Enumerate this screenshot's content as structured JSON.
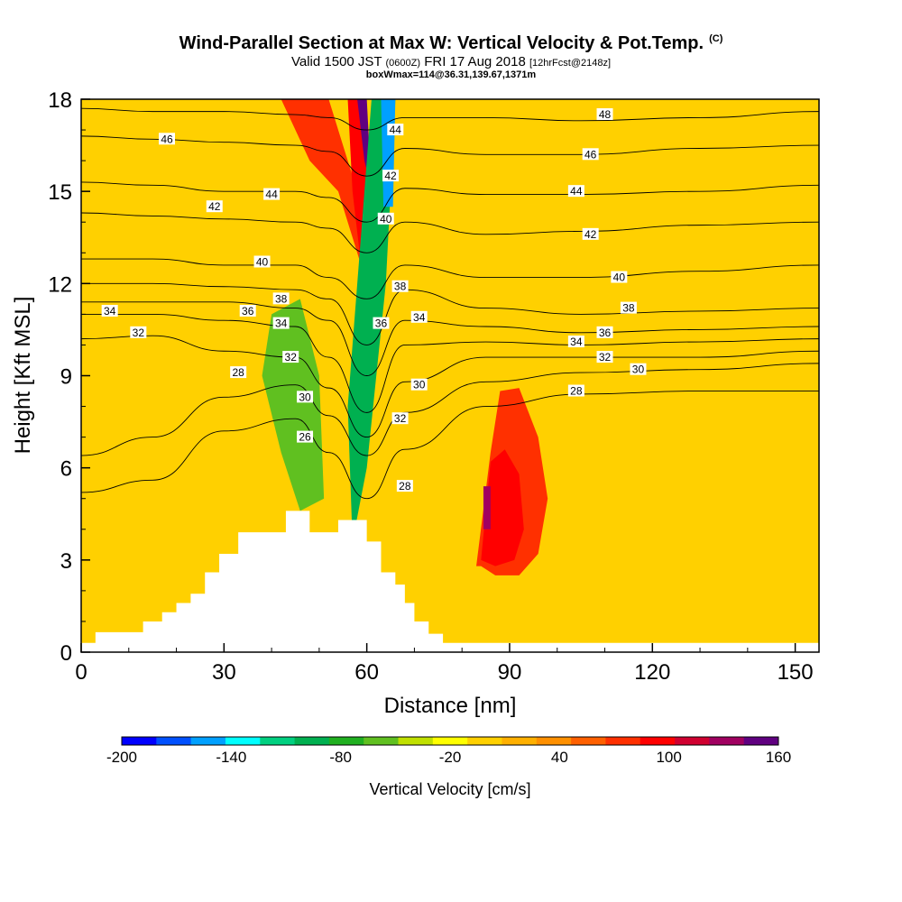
{
  "title": {
    "main": "Wind-Parallel Section at Max W: Vertical Velocity & Pot.Temp.",
    "copyright": "(C)",
    "valid_prefix": "Valid 1500 JST",
    "valid_utc": "(0600Z)",
    "valid_date": "FRI 17 Aug 2018",
    "forecast": "[12hrFcst@2148z]",
    "box": "boxWmax=114@36.31,139.67,1371m"
  },
  "colors": {
    "background_fill": "#ffd000",
    "terrain": "#ffffff",
    "contour_line": "#000000"
  },
  "chart_data": {
    "type": "heatmap",
    "xlabel": "Distance [nm]",
    "ylabel": "Height [Kft MSL]",
    "xlim": [
      0,
      155
    ],
    "ylim": [
      0,
      18
    ],
    "xticks": [
      "0",
      "30",
      "60",
      "90",
      "120",
      "150"
    ],
    "xtick_values": [
      0,
      30,
      60,
      90,
      120,
      150
    ],
    "yticks": [
      "0",
      "3",
      "6",
      "9",
      "12",
      "15",
      "18"
    ],
    "ytick_values": [
      0,
      3,
      6,
      9,
      12,
      15,
      18
    ],
    "colorbar": {
      "label": "Vertical Velocity [cm/s]",
      "min": -200,
      "max": 160,
      "step": 20,
      "tick_labels": [
        "-200",
        "-140",
        "-80",
        "-20",
        "40",
        "100",
        "160"
      ],
      "tick_values": [
        -200,
        -140,
        -80,
        -20,
        40,
        100,
        160
      ],
      "colors": [
        "#0000ff",
        "#0050ff",
        "#00a0ff",
        "#00ffff",
        "#00d080",
        "#00b050",
        "#20b020",
        "#60c020",
        "#c0e000",
        "#ffff00",
        "#ffd000",
        "#ffb000",
        "#ff9000",
        "#ff6000",
        "#ff3000",
        "#ff0000",
        "#d00030",
        "#a00060",
        "#600080"
      ]
    },
    "terrain_profile": [
      [
        0,
        0.3
      ],
      [
        3,
        0.3
      ],
      [
        3,
        0.65
      ],
      [
        13,
        0.65
      ],
      [
        13,
        1.0
      ],
      [
        17,
        1.0
      ],
      [
        17,
        1.3
      ],
      [
        20,
        1.3
      ],
      [
        20,
        1.6
      ],
      [
        23,
        1.6
      ],
      [
        23,
        1.9
      ],
      [
        26,
        1.9
      ],
      [
        26,
        2.6
      ],
      [
        29,
        2.6
      ],
      [
        29,
        3.2
      ],
      [
        33,
        3.2
      ],
      [
        33,
        3.9
      ],
      [
        43,
        3.9
      ],
      [
        43,
        4.6
      ],
      [
        48,
        4.6
      ],
      [
        48,
        3.9
      ],
      [
        54,
        3.9
      ],
      [
        54,
        4.3
      ],
      [
        60,
        4.3
      ],
      [
        60,
        3.6
      ],
      [
        63,
        3.6
      ],
      [
        63,
        2.6
      ],
      [
        66,
        2.6
      ],
      [
        66,
        2.2
      ],
      [
        68,
        2.2
      ],
      [
        68,
        1.6
      ],
      [
        70,
        1.6
      ],
      [
        70,
        1.0
      ],
      [
        73,
        1.0
      ],
      [
        73,
        0.6
      ],
      [
        76,
        0.6
      ],
      [
        76,
        0.3
      ],
      [
        155,
        0.3
      ]
    ],
    "vertical_velocity_regions": [
      {
        "w": 80,
        "x": [
          83,
          86,
          88,
          92,
          96,
          98,
          96,
          92,
          87,
          84
        ],
        "y": [
          2.8,
          6.5,
          8.5,
          8.6,
          7.0,
          5.0,
          3.2,
          2.5,
          2.5,
          2.8
        ]
      },
      {
        "w": 100,
        "x": [
          84,
          86,
          89,
          92,
          93,
          91,
          87
        ],
        "y": [
          3.0,
          6.2,
          6.6,
          5.8,
          4.0,
          3.0,
          2.8
        ]
      },
      {
        "w": 140,
        "x": [
          84.5,
          86,
          86,
          84.5
        ],
        "y": [
          4.0,
          4.0,
          5.4,
          5.4
        ]
      },
      {
        "w": 80,
        "x": [
          42,
          46,
          52,
          56,
          60,
          60,
          57,
          54,
          48
        ],
        "y": [
          18,
          18,
          18,
          16,
          14,
          12,
          13.5,
          15,
          16
        ]
      },
      {
        "w": 100,
        "x": [
          56,
          59,
          62,
          62,
          61,
          60,
          57
        ],
        "y": [
          18,
          18,
          14,
          12,
          10,
          11,
          15
        ]
      },
      {
        "w": 160,
        "x": [
          58,
          60,
          61,
          59.5
        ],
        "y": [
          18,
          18,
          15,
          16
        ]
      },
      {
        "w": -60,
        "x": [
          40,
          46,
          50,
          51,
          46,
          42,
          38
        ],
        "y": [
          11,
          11.5,
          9,
          5,
          4.6,
          6.5,
          9
        ]
      },
      {
        "w": -100,
        "x": [
          56,
          61,
          66,
          64,
          60,
          57
        ],
        "y": [
          8,
          18,
          18,
          12,
          6,
          3.6
        ]
      },
      {
        "w": -160,
        "x": [
          63,
          66,
          65.5,
          63.5
        ],
        "y": [
          18,
          18,
          14.5,
          14.5
        ]
      }
    ],
    "potential_temperature_contours": [
      {
        "label": "28",
        "y": [
          5.2,
          5.6,
          7.2,
          7.6,
          6.5,
          5.0,
          6.6,
          8.0,
          8.4,
          8.5,
          8.5
        ]
      },
      {
        "label": "30",
        "y": [
          6.4,
          7.0,
          8.3,
          8.7,
          7.7,
          6.4,
          7.8,
          8.8,
          9.1,
          9.2,
          9.4
        ]
      },
      {
        "label": "32",
        "y": [
          10.2,
          10.3,
          9.8,
          9.6,
          8.6,
          7.0,
          8.8,
          9.6,
          9.6,
          9.6,
          9.8
        ]
      },
      {
        "label": "34",
        "y": [
          11.0,
          11.0,
          10.8,
          10.6,
          9.6,
          7.8,
          10.0,
          10.1,
          10.0,
          10.1,
          10.2
        ]
      },
      {
        "label": "36",
        "y": [
          11.4,
          11.4,
          11.4,
          11.2,
          10.8,
          9.0,
          10.8,
          10.6,
          10.4,
          10.5,
          10.6
        ]
      },
      {
        "label": "38",
        "y": [
          12.0,
          12.0,
          11.9,
          11.8,
          11.5,
          10.0,
          11.8,
          11.2,
          11.0,
          11.1,
          11.2
        ]
      },
      {
        "label": "40",
        "y": [
          12.8,
          12.8,
          12.6,
          12.6,
          12.2,
          11.5,
          12.6,
          12.2,
          12.2,
          12.4,
          12.6
        ]
      },
      {
        "label": "42",
        "y": [
          14.3,
          14.2,
          14.1,
          14.0,
          13.8,
          13.0,
          14.0,
          13.6,
          13.7,
          13.9,
          14.0
        ]
      },
      {
        "label": "44",
        "y": [
          15.3,
          15.2,
          15.0,
          15.0,
          14.8,
          14.0,
          15.1,
          14.9,
          14.9,
          15.0,
          15.2
        ]
      },
      {
        "label": "46",
        "y": [
          16.8,
          16.7,
          16.6,
          16.5,
          16.3,
          15.5,
          16.4,
          16.2,
          16.2,
          16.4,
          16.5
        ]
      },
      {
        "label": "48",
        "y": [
          17.7,
          17.6,
          17.6,
          17.5,
          17.4,
          17.0,
          17.4,
          17.4,
          17.3,
          17.4,
          17.6
        ]
      }
    ],
    "contour_x": [
      0,
      15,
      30,
      45,
      52,
      60,
      68,
      85,
      105,
      130,
      155
    ],
    "contour_labels": [
      {
        "text": "46",
        "x": 18,
        "y": 16.7
      },
      {
        "text": "42",
        "x": 28,
        "y": 14.5
      },
      {
        "text": "44",
        "x": 40,
        "y": 14.9
      },
      {
        "text": "40",
        "x": 38,
        "y": 12.7
      },
      {
        "text": "38",
        "x": 42,
        "y": 11.5
      },
      {
        "text": "36",
        "x": 35,
        "y": 11.1
      },
      {
        "text": "34",
        "x": 6,
        "y": 11.1
      },
      {
        "text": "32",
        "x": 12,
        "y": 10.4
      },
      {
        "text": "34",
        "x": 42,
        "y": 10.7
      },
      {
        "text": "32",
        "x": 44,
        "y": 9.6
      },
      {
        "text": "30",
        "x": 47,
        "y": 8.3
      },
      {
        "text": "28",
        "x": 33,
        "y": 9.1
      },
      {
        "text": "26",
        "x": 47,
        "y": 7.0
      },
      {
        "text": "44",
        "x": 66,
        "y": 17.0
      },
      {
        "text": "42",
        "x": 65,
        "y": 15.5
      },
      {
        "text": "40",
        "x": 64,
        "y": 14.1
      },
      {
        "text": "38",
        "x": 67,
        "y": 11.9
      },
      {
        "text": "36",
        "x": 63,
        "y": 10.7
      },
      {
        "text": "34",
        "x": 71,
        "y": 10.9
      },
      {
        "text": "30",
        "x": 71,
        "y": 8.7
      },
      {
        "text": "32",
        "x": 67,
        "y": 7.6
      },
      {
        "text": "28",
        "x": 68,
        "y": 5.4
      },
      {
        "text": "48",
        "x": 110,
        "y": 17.5
      },
      {
        "text": "46",
        "x": 107,
        "y": 16.2
      },
      {
        "text": "44",
        "x": 104,
        "y": 15.0
      },
      {
        "text": "42",
        "x": 107,
        "y": 13.6
      },
      {
        "text": "40",
        "x": 113,
        "y": 12.2
      },
      {
        "text": "38",
        "x": 115,
        "y": 11.2
      },
      {
        "text": "36",
        "x": 110,
        "y": 10.4
      },
      {
        "text": "34",
        "x": 104,
        "y": 10.1
      },
      {
        "text": "32",
        "x": 110,
        "y": 9.6
      },
      {
        "text": "30",
        "x": 117,
        "y": 9.2
      },
      {
        "text": "28",
        "x": 104,
        "y": 8.5
      }
    ]
  }
}
